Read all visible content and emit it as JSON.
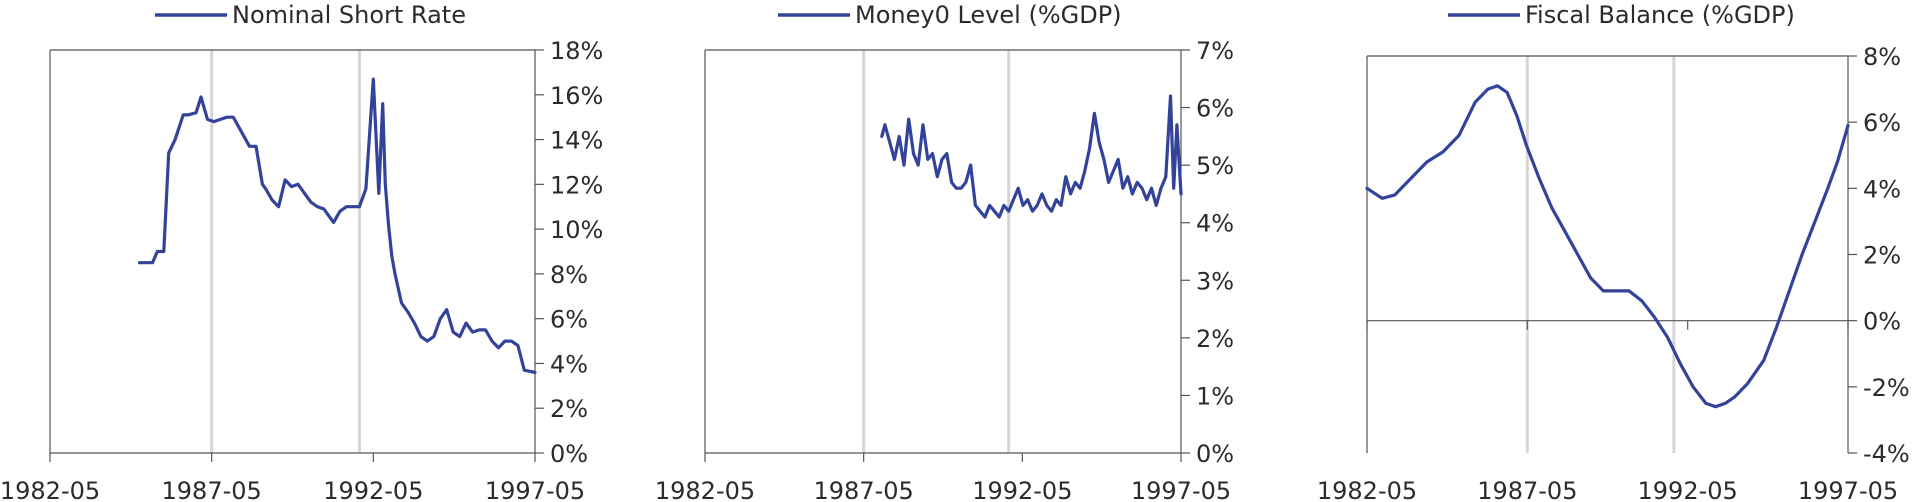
{
  "colors": {
    "line": "#34439a",
    "axis": "#555555",
    "vline": "#d6d6d6",
    "text": "#2b2b2b"
  },
  "chart_data": [
    {
      "type": "line",
      "legend": "Nominal Short Rate",
      "legend_position": "top-center",
      "x_ticks": [
        "1982-05",
        "1987-05",
        "1992-05",
        "1997-05"
      ],
      "x_range": [
        1982.33,
        1997.33
      ],
      "y_range": [
        0,
        18
      ],
      "y_ticks": [
        "0%",
        "2%",
        "4%",
        "6%",
        "8%",
        "10%",
        "12%",
        "14%",
        "16%",
        "18%"
      ],
      "y_tick_values": [
        0,
        2,
        4,
        6,
        8,
        10,
        12,
        14,
        16,
        18
      ],
      "vertical_lines": [
        1987.33,
        1991.9
      ],
      "series": [
        {
          "x": [
            1985.1,
            1985.5,
            1985.65,
            1985.85,
            1986.0,
            1986.2,
            1986.45,
            1986.6,
            1986.85,
            1987.0,
            1987.2,
            1987.4,
            1987.6,
            1987.8,
            1988.0,
            1988.5,
            1988.7,
            1988.9,
            1989.0,
            1989.2,
            1989.4,
            1989.6,
            1989.8,
            1990.0,
            1990.2,
            1990.4,
            1990.6,
            1990.8,
            1991.0,
            1991.1,
            1991.3,
            1991.5,
            1991.7,
            1991.9,
            1992.1,
            1992.33,
            1992.5,
            1992.62,
            1992.7,
            1992.8,
            1992.9,
            1993.0,
            1993.2,
            1993.4,
            1993.6,
            1993.8,
            1994.0,
            1994.2,
            1994.4,
            1994.6,
            1994.8,
            1995.0,
            1995.2,
            1995.4,
            1995.6,
            1995.8,
            1996.0,
            1996.2,
            1996.4,
            1996.6,
            1996.8,
            1997.0,
            1997.33
          ],
          "y": [
            8.5,
            8.5,
            9.0,
            9.0,
            13.4,
            14.0,
            15.1,
            15.1,
            15.2,
            15.9,
            14.9,
            14.8,
            14.9,
            15.0,
            15.0,
            13.7,
            13.7,
            12.0,
            11.8,
            11.3,
            11.0,
            12.2,
            11.9,
            12.0,
            11.6,
            11.2,
            11.0,
            10.9,
            10.5,
            10.3,
            10.8,
            11.0,
            11.0,
            11.0,
            11.8,
            16.7,
            11.6,
            15.6,
            12.0,
            10.2,
            8.8,
            8.0,
            6.7,
            6.3,
            5.8,
            5.2,
            5.0,
            5.2,
            6.0,
            6.4,
            5.4,
            5.2,
            5.8,
            5.4,
            5.5,
            5.5,
            5.0,
            4.7,
            5.0,
            5.0,
            4.8,
            3.7,
            3.6
          ]
        }
      ]
    },
    {
      "type": "line",
      "legend": "Money0 Level (%GDP)",
      "legend_position": "top-center",
      "x_ticks": [
        "1982-05",
        "1987-05",
        "1992-05",
        "1997-05"
      ],
      "x_range": [
        1982.33,
        1997.33
      ],
      "y_range": [
        0,
        7
      ],
      "y_ticks": [
        "0%",
        "1%",
        "2%",
        "3%",
        "4%",
        "5%",
        "6%",
        "7%"
      ],
      "y_tick_values": [
        0,
        1,
        2,
        3,
        4,
        5,
        6,
        7
      ],
      "vertical_lines": [
        1987.33,
        1991.9
      ],
      "series": [
        {
          "x": [
            1987.9,
            1988.0,
            1988.15,
            1988.3,
            1988.45,
            1988.6,
            1988.75,
            1988.9,
            1989.05,
            1989.2,
            1989.35,
            1989.5,
            1989.65,
            1989.8,
            1989.95,
            1990.1,
            1990.25,
            1990.4,
            1990.55,
            1990.7,
            1990.85,
            1991.0,
            1991.15,
            1991.3,
            1991.45,
            1991.6,
            1991.75,
            1991.9,
            1992.05,
            1992.2,
            1992.35,
            1992.5,
            1992.65,
            1992.8,
            1992.95,
            1993.1,
            1993.25,
            1993.4,
            1993.55,
            1993.7,
            1993.85,
            1994.0,
            1994.15,
            1994.3,
            1994.45,
            1994.6,
            1994.75,
            1994.9,
            1995.05,
            1995.2,
            1995.35,
            1995.5,
            1995.65,
            1995.8,
            1995.95,
            1996.1,
            1996.25,
            1996.4,
            1996.55,
            1996.7,
            1996.85,
            1997.0,
            1997.1,
            1997.2,
            1997.33
          ],
          "y": [
            5.5,
            5.7,
            5.4,
            5.1,
            5.5,
            5.0,
            5.8,
            5.2,
            5.0,
            5.7,
            5.1,
            5.2,
            4.8,
            5.1,
            5.2,
            4.7,
            4.6,
            4.6,
            4.7,
            5.0,
            4.3,
            4.2,
            4.1,
            4.3,
            4.2,
            4.1,
            4.3,
            4.2,
            4.4,
            4.6,
            4.3,
            4.4,
            4.2,
            4.3,
            4.5,
            4.3,
            4.2,
            4.4,
            4.3,
            4.8,
            4.5,
            4.7,
            4.6,
            4.9,
            5.3,
            5.9,
            5.4,
            5.1,
            4.7,
            4.9,
            5.1,
            4.6,
            4.8,
            4.5,
            4.7,
            4.6,
            4.4,
            4.6,
            4.3,
            4.6,
            4.8,
            6.2,
            4.6,
            5.7,
            4.5
          ]
        }
      ]
    },
    {
      "type": "line",
      "legend": "Fiscal Balance (%GDP)",
      "legend_position": "top-center",
      "x_ticks": [
        "1982-05",
        "1987-05",
        "1992-05",
        "1997-05"
      ],
      "x_range": [
        1982.33,
        1997.33
      ],
      "y_range": [
        -4,
        8
      ],
      "y_ticks": [
        "-4%",
        "-2%",
        "0%",
        "2%",
        "4%",
        "6%",
        "8%"
      ],
      "y_tick_values": [
        -4,
        -2,
        0,
        2,
        4,
        6,
        8
      ],
      "vertical_lines": [
        1987.33,
        1991.9
      ],
      "series": [
        {
          "x": [
            1982.33,
            1982.8,
            1983.2,
            1983.7,
            1984.2,
            1984.7,
            1985.2,
            1985.7,
            1986.1,
            1986.4,
            1986.7,
            1987.0,
            1987.3,
            1987.7,
            1988.1,
            1988.5,
            1988.9,
            1989.3,
            1989.7,
            1990.1,
            1990.5,
            1990.9,
            1991.3,
            1991.7,
            1992.1,
            1992.5,
            1992.9,
            1993.2,
            1993.5,
            1993.8,
            1994.2,
            1994.7,
            1995.1,
            1995.5,
            1995.9,
            1996.3,
            1996.7,
            1997.0,
            1997.33
          ],
          "y": [
            4.0,
            3.7,
            3.8,
            4.3,
            4.8,
            5.1,
            5.6,
            6.6,
            7.0,
            7.1,
            6.9,
            6.2,
            5.3,
            4.3,
            3.4,
            2.7,
            2.0,
            1.3,
            0.9,
            0.9,
            0.9,
            0.6,
            0.1,
            -0.5,
            -1.3,
            -2.0,
            -2.5,
            -2.6,
            -2.5,
            -2.3,
            -1.9,
            -1.2,
            -0.2,
            0.9,
            2.0,
            3.0,
            4.0,
            4.8,
            5.9
          ]
        }
      ]
    }
  ]
}
